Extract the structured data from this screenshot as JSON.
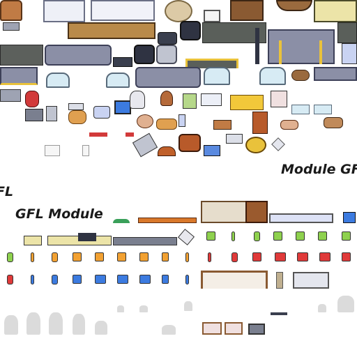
{
  "labels": {
    "module_gf_right": "Module GF",
    "fl_left": "FL",
    "gfl_module": "GFL Module"
  },
  "colors": {
    "sofa_gray": "#8b8fa6",
    "wood": "#9a5a2e",
    "gold": "#e9c23b",
    "green_face": "#8ed14e",
    "orange_face": "#f2a132",
    "blue_face": "#3c7be0",
    "red_face": "#e03a3a",
    "dark_floor": "#5a5f5a",
    "panel_blue": "#c9d3f2"
  },
  "tiles": [
    "armchair-orange",
    "white-desk",
    "round-rug",
    "tv-monitor",
    "trophy-shelf",
    "side-table",
    "sofa-gray",
    "black-armchair",
    "gray-armchair",
    "dark-rug",
    "bench-gold-trim",
    "blue-sofa",
    "glass-chair",
    "floor-lamp",
    "bookshelf-wood",
    "wall-panel",
    "green-smileys",
    "orange-smileys",
    "blue-smileys",
    "red-smileys",
    "ghost-silhouettes",
    "computer-console"
  ]
}
